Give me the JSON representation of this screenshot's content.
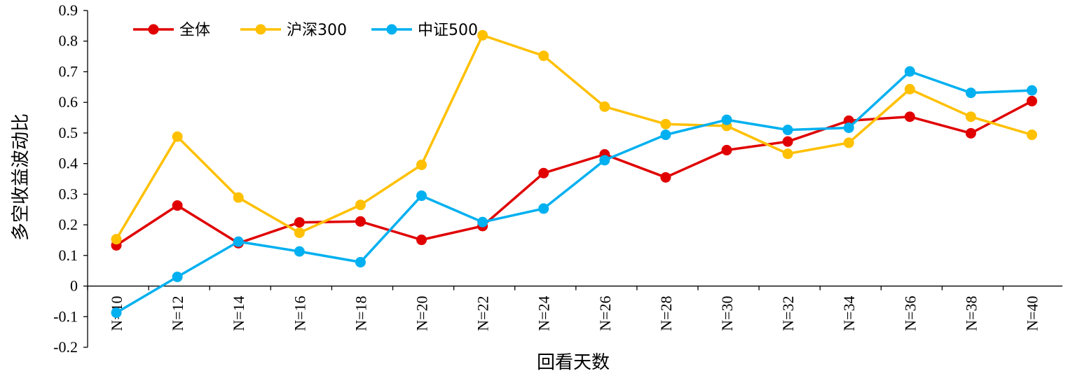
{
  "chart_data": {
    "type": "line",
    "title": "",
    "xlabel": "回看天数",
    "ylabel": "多空收益波动比",
    "categories": [
      "N=10",
      "N=12",
      "N=14",
      "N=16",
      "N=18",
      "N=20",
      "N=22",
      "N=24",
      "N=26",
      "N=28",
      "N=30",
      "N=32",
      "N=34",
      "N=36",
      "N=38",
      "N=40"
    ],
    "ylim": [
      -0.2,
      0.9
    ],
    "yticks": [
      "-0.2",
      "-0.1",
      "0",
      "0.1",
      "0.2",
      "0.3",
      "0.4",
      "0.5",
      "0.6",
      "0.7",
      "0.8",
      "0.9"
    ],
    "grid": false,
    "legend_position": "top-left",
    "series": [
      {
        "name": "全体",
        "color": "#e00000",
        "values": [
          0.133,
          0.263,
          0.14,
          0.208,
          0.211,
          0.151,
          0.196,
          0.369,
          0.43,
          0.355,
          0.444,
          0.472,
          0.54,
          0.553,
          0.499,
          0.604
        ]
      },
      {
        "name": "沪深300",
        "color": "#ffc000",
        "values": [
          0.153,
          0.488,
          0.289,
          0.174,
          0.265,
          0.396,
          0.819,
          0.752,
          0.586,
          0.529,
          0.523,
          0.432,
          0.468,
          0.643,
          0.553,
          0.494
        ]
      },
      {
        "name": "中证500",
        "color": "#00b0f0",
        "values": [
          -0.087,
          0.03,
          0.145,
          0.113,
          0.078,
          0.295,
          0.209,
          0.253,
          0.411,
          0.494,
          0.543,
          0.51,
          0.517,
          0.701,
          0.631,
          0.639
        ]
      }
    ]
  }
}
